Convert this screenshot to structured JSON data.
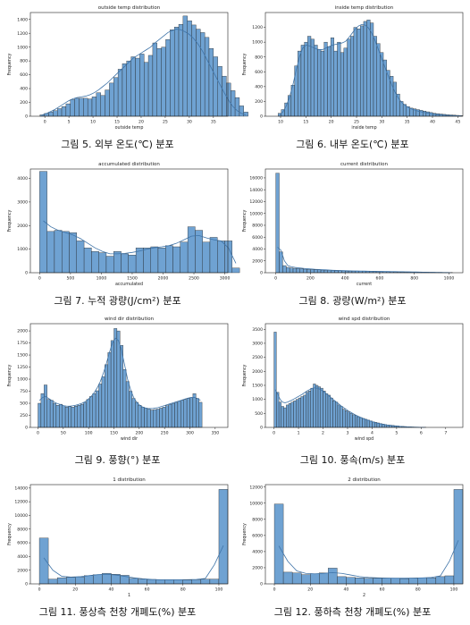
{
  "chart_data": [
    {
      "type": "histogram",
      "title": "outside temp distribution",
      "xlabel": "outside temp",
      "ylabel": "Frequency",
      "xlim": [
        -3,
        38
      ],
      "ylim": [
        0,
        1500
      ],
      "xticks": [
        0,
        5,
        10,
        15,
        20,
        25,
        30,
        35
      ],
      "yticks": [
        0,
        200,
        400,
        600,
        800,
        1000,
        1200,
        1400
      ],
      "bin_start": -1,
      "bin_width": 0.9,
      "values": [
        20,
        40,
        60,
        80,
        110,
        140,
        180,
        240,
        260,
        260,
        260,
        250,
        280,
        340,
        300,
        380,
        480,
        560,
        680,
        760,
        800,
        860,
        840,
        900,
        780,
        880,
        1060,
        980,
        1000,
        1110,
        1250,
        1290,
        1330,
        1450,
        1380,
        1320,
        1260,
        1210,
        1140,
        980,
        860,
        720,
        580,
        480,
        370,
        270,
        150,
        60
      ],
      "kde": [
        20,
        40,
        70,
        100,
        140,
        180,
        220,
        250,
        270,
        280,
        290,
        310,
        340,
        380,
        430,
        480,
        540,
        600,
        660,
        720,
        780,
        840,
        880,
        920,
        960,
        1000,
        1060,
        1110,
        1160,
        1210,
        1240,
        1260,
        1250,
        1220,
        1180,
        1120,
        1040,
        940,
        820,
        700,
        580,
        460,
        340,
        230,
        140,
        80,
        40,
        20
      ],
      "caption": "그림 5. 외부 온도(℃) 분포"
    },
    {
      "type": "histogram",
      "title": "inside temp distribution",
      "xlabel": "inside temp",
      "ylabel": "Frequency",
      "xlim": [
        7,
        46
      ],
      "ylim": [
        0,
        1400
      ],
      "xticks": [
        10,
        15,
        20,
        25,
        30,
        35,
        40,
        45
      ],
      "yticks": [
        0,
        200,
        400,
        600,
        800,
        1000,
        1200
      ],
      "bin_start": 9.5,
      "bin_width": 0.65,
      "values": [
        40,
        90,
        180,
        280,
        420,
        680,
        880,
        960,
        1000,
        1080,
        1040,
        960,
        900,
        880,
        1000,
        940,
        1060,
        880,
        1000,
        860,
        920,
        1040,
        1080,
        1200,
        1180,
        1220,
        1280,
        1300,
        1260,
        1080,
        980,
        860,
        760,
        620,
        540,
        460,
        300,
        200,
        160,
        130,
        110,
        100,
        90,
        80,
        70,
        60,
        50,
        40,
        35,
        30,
        25,
        20,
        18,
        15,
        12,
        10
      ],
      "kde": [
        20,
        60,
        140,
        260,
        420,
        620,
        800,
        920,
        960,
        950,
        930,
        910,
        900,
        900,
        920,
        940,
        960,
        970,
        980,
        990,
        1010,
        1060,
        1120,
        1180,
        1220,
        1240,
        1230,
        1190,
        1120,
        1020,
        900,
        780,
        660,
        540,
        430,
        330,
        250,
        190,
        150,
        120,
        100,
        85,
        70,
        60,
        50,
        42,
        35,
        28,
        22,
        18,
        14,
        11,
        9,
        7,
        5,
        4
      ],
      "caption": "그림 6. 내부 온도(℃) 분포"
    },
    {
      "type": "histogram",
      "title": "accumulated distribution",
      "xlabel": "accumulated",
      "ylabel": "Frequency",
      "xlim": [
        -150,
        3050
      ],
      "ylim": [
        0,
        4400
      ],
      "xticks": [
        0,
        500,
        1000,
        1500,
        2000,
        2500,
        3000
      ],
      "yticks": [
        0,
        1000,
        2000,
        3000,
        4000
      ],
      "bin_start": 0,
      "bin_width": 120,
      "values": [
        4300,
        1750,
        1800,
        1750,
        1700,
        1350,
        1050,
        900,
        850,
        700,
        900,
        800,
        750,
        1050,
        1050,
        1100,
        1050,
        1150,
        1100,
        1300,
        1950,
        1800,
        1300,
        1500,
        1350,
        1350,
        200
      ],
      "kde": [
        2200,
        1950,
        1800,
        1700,
        1600,
        1450,
        1250,
        1050,
        900,
        800,
        800,
        820,
        860,
        920,
        1000,
        1060,
        1100,
        1150,
        1250,
        1400,
        1550,
        1580,
        1480,
        1400,
        1350,
        1050,
        400
      ],
      "caption": "그림 7. 누적 광량(J/cm²) 분포"
    },
    {
      "type": "histogram",
      "title": "current distribution",
      "xlabel": "current",
      "ylabel": "Frequency",
      "xlim": [
        -60,
        1080
      ],
      "ylim": [
        0,
        17500
      ],
      "xticks": [
        0,
        200,
        400,
        600,
        800,
        1000
      ],
      "yticks": [
        0,
        2000,
        4000,
        6000,
        8000,
        10000,
        12000,
        14000,
        16000
      ],
      "bin_start": 0,
      "bin_width": 20,
      "values": [
        16800,
        3500,
        1200,
        900,
        800,
        750,
        700,
        650,
        600,
        550,
        520,
        500,
        480,
        450,
        420,
        400,
        380,
        360,
        340,
        320,
        300,
        290,
        280,
        270,
        260,
        250,
        240,
        230,
        220,
        210,
        200,
        190,
        180,
        170,
        160,
        150,
        140,
        130,
        120,
        110,
        100,
        90,
        80,
        80,
        70,
        70,
        60,
        60,
        50,
        50,
        40
      ],
      "kde": [
        4300,
        3800,
        2000,
        1200,
        1000,
        900,
        820,
        760,
        700,
        650,
        610,
        570,
        540,
        510,
        480,
        450,
        420,
        400,
        380,
        360,
        340,
        320,
        300,
        290,
        280,
        270,
        260,
        250,
        240,
        230,
        220,
        210,
        200,
        190,
        180,
        170,
        160,
        150,
        140,
        130,
        120,
        110,
        100,
        90,
        80,
        70,
        60,
        50,
        40,
        30,
        20
      ],
      "caption": "그림 8. 광량(W/m²) 분포"
    },
    {
      "type": "histogram",
      "title": "wind dir distribution",
      "xlabel": "wind dir",
      "ylabel": "Frequency",
      "xlim": [
        -15,
        375
      ],
      "ylim": [
        0,
        2150
      ],
      "xticks": [
        0,
        50,
        100,
        150,
        200,
        250,
        300,
        350
      ],
      "yticks": [
        0,
        250,
        500,
        750,
        1000,
        1250,
        1500,
        1750,
        2000
      ],
      "bin_start": 0,
      "bin_width": 6,
      "values": [
        500,
        700,
        880,
        580,
        560,
        500,
        460,
        480,
        450,
        420,
        430,
        420,
        440,
        460,
        480,
        520,
        580,
        640,
        700,
        760,
        900,
        1050,
        1300,
        1550,
        1800,
        2050,
        2000,
        1700,
        1200,
        950,
        750,
        600,
        520,
        460,
        420,
        400,
        380,
        360,
        370,
        380,
        400,
        420,
        450,
        480,
        500,
        520,
        540,
        560,
        580,
        600,
        620,
        700,
        600,
        520
      ],
      "kde": [
        560,
        620,
        640,
        600,
        560,
        520,
        490,
        470,
        450,
        440,
        440,
        450,
        460,
        480,
        500,
        530,
        580,
        640,
        720,
        820,
        950,
        1120,
        1320,
        1550,
        1750,
        1850,
        1800,
        1600,
        1300,
        1000,
        780,
        620,
        520,
        460,
        420,
        400,
        390,
        390,
        400,
        410,
        430,
        450,
        470,
        490,
        510,
        530,
        550,
        570,
        590,
        610,
        620,
        620,
        600,
        560
      ],
      "caption": "그림 9. 풍향(°) 분포"
    },
    {
      "type": "histogram",
      "title": "wind spd distribution",
      "xlabel": "wind spd",
      "ylabel": "Frequency",
      "xlim": [
        -0.35,
        7.7
      ],
      "ylim": [
        0,
        3700
      ],
      "xticks": [
        0,
        1,
        2,
        3,
        4,
        5,
        6,
        7
      ],
      "yticks": [
        0,
        500,
        1000,
        1500,
        2000,
        2500,
        3000,
        3500
      ],
      "bin_start": 0,
      "bin_width": 0.1,
      "values": [
        3400,
        1250,
        900,
        750,
        700,
        800,
        850,
        900,
        950,
        1000,
        1050,
        1100,
        1150,
        1250,
        1300,
        1400,
        1550,
        1500,
        1450,
        1400,
        1300,
        1200,
        1150,
        1050,
        950,
        900,
        800,
        750,
        650,
        600,
        550,
        500,
        450,
        420,
        380,
        350,
        320,
        290,
        260,
        230,
        200,
        180,
        160,
        140,
        120,
        100,
        90,
        80,
        70,
        60,
        50,
        40,
        35,
        30,
        25,
        20,
        15,
        12,
        10,
        8,
        6,
        5
      ],
      "kde": [
        1350,
        1200,
        1000,
        900,
        880,
        900,
        940,
        980,
        1030,
        1080,
        1130,
        1180,
        1240,
        1300,
        1350,
        1390,
        1410,
        1400,
        1370,
        1320,
        1260,
        1190,
        1120,
        1040,
        970,
        900,
        830,
        760,
        700,
        640,
        580,
        530,
        480,
        430,
        390,
        350,
        310,
        280,
        250,
        220,
        190,
        165,
        145,
        125,
        110,
        95,
        80,
        70,
        60,
        50,
        42,
        35,
        28,
        22,
        18,
        14,
        11,
        9,
        7,
        5,
        4,
        3
      ],
      "caption": "그림 10. 풍속(m/s) 분포"
    },
    {
      "type": "histogram",
      "title": "1 distribution",
      "xlabel": "1",
      "ylabel": "Frequency",
      "xlim": [
        -5,
        105
      ],
      "ylim": [
        0,
        14500
      ],
      "xticks": [
        0,
        20,
        40,
        60,
        80,
        100
      ],
      "yticks": [
        0,
        2000,
        4000,
        6000,
        8000,
        10000,
        12000,
        14000
      ],
      "bin_start": 0,
      "bin_width": 5,
      "values": [
        6700,
        700,
        900,
        950,
        1000,
        1200,
        1350,
        1550,
        1400,
        1250,
        800,
        700,
        650,
        600,
        600,
        600,
        550,
        600,
        700,
        700,
        13800
      ],
      "kde": [
        3800,
        2000,
        1100,
        1000,
        1050,
        1200,
        1350,
        1400,
        1300,
        1100,
        900,
        750,
        650,
        600,
        600,
        600,
        620,
        650,
        800,
        2800,
        5600
      ],
      "caption": "그림 11. 풍상측 천창 개폐도(%) 분포"
    },
    {
      "type": "histogram",
      "title": "2 distribution",
      "xlabel": "2",
      "ylabel": "Frequency",
      "xlim": [
        -5,
        105
      ],
      "ylim": [
        0,
        12300
      ],
      "xticks": [
        0,
        20,
        40,
        60,
        80,
        100
      ],
      "yticks": [
        0,
        2000,
        4000,
        6000,
        8000,
        10000,
        12000
      ],
      "bin_start": 0,
      "bin_width": 5,
      "values": [
        9900,
        1450,
        1350,
        1150,
        1250,
        1350,
        1950,
        900,
        800,
        750,
        700,
        700,
        700,
        700,
        650,
        700,
        750,
        750,
        900,
        1000,
        11700
      ],
      "kde": [
        4700,
        2800,
        1600,
        1300,
        1250,
        1300,
        1400,
        1300,
        1100,
        900,
        800,
        750,
        720,
        700,
        700,
        720,
        750,
        800,
        1000,
        2800,
        5400
      ],
      "caption": "그림 12. 풍하측 천창 개폐도(%) 분포"
    }
  ],
  "colors": {
    "bar_fill": "#6fa2d2",
    "bar_edge": "#1b1b1b",
    "kde_line": "#3f74a8",
    "axis": "#222222"
  }
}
